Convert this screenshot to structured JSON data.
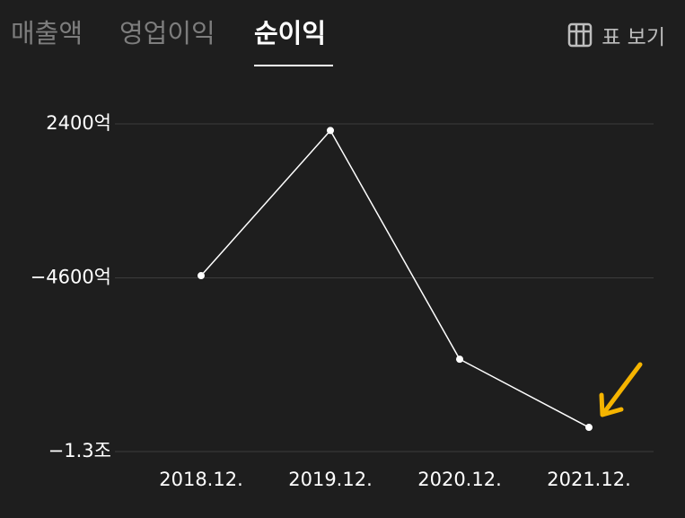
{
  "tabs": [
    "매출액",
    "영업이익",
    "순이익"
  ],
  "active_tab": 2,
  "table_button": "표 보기",
  "chart_data": {
    "type": "line",
    "categories": [
      "2018.12.",
      "2019.12.",
      "2020.12.",
      "2021.12."
    ],
    "values": [
      -4500,
      2100,
      -8300,
      -11400
    ],
    "color": "#ffffff",
    "ylim": [
      -12500,
      2400
    ],
    "yticks": [
      {
        "value": 2400,
        "label": "2400억"
      },
      {
        "value": -4600,
        "label": "−4600억"
      },
      {
        "value": -12500,
        "label": "−1.3조"
      }
    ],
    "grid": true
  }
}
